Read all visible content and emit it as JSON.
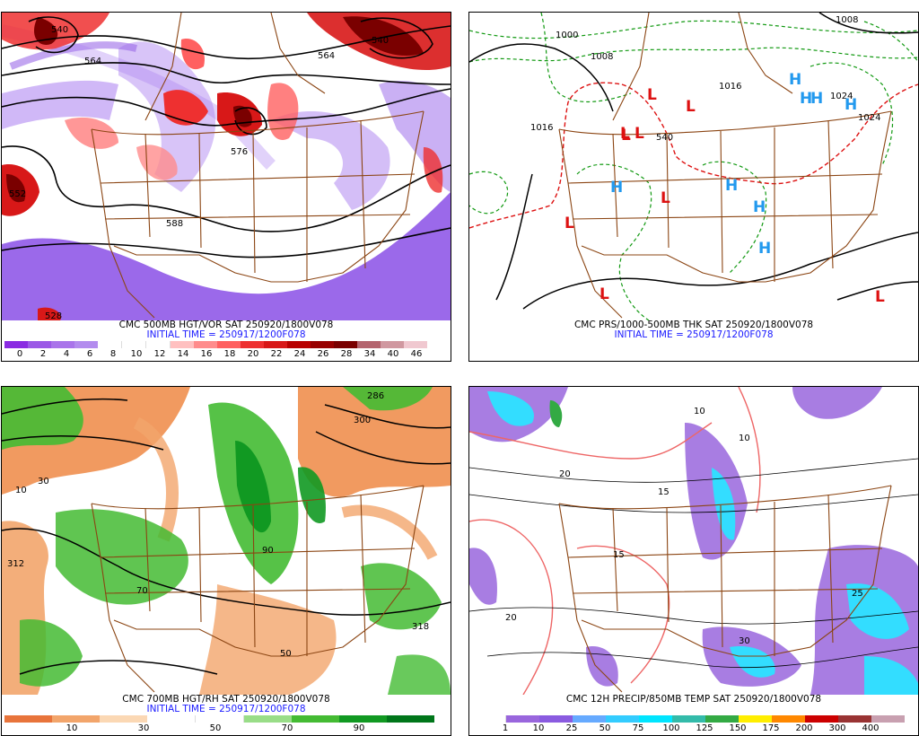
{
  "panels": {
    "top_left": {
      "caption": "CMC 500MB HGT/VOR SAT 250920/1800V078",
      "init": "INITIAL TIME = 250917/1200F078",
      "ticks": [
        "0",
        "2",
        "4",
        "6",
        "8",
        "10",
        "12",
        "14",
        "16",
        "18",
        "20",
        "22",
        "24",
        "26",
        "28",
        "34",
        "40",
        "46"
      ],
      "colors": [
        "#8a2be2",
        "#9b59e6",
        "#a974ea",
        "#b38cee",
        "#ffffff",
        "#ffffff",
        "#ffffff",
        "#ffc0c0",
        "#ff8c8c",
        "#ff6060",
        "#ee3030",
        "#d81818",
        "#b80000",
        "#980000",
        "#7a0000",
        "#b4646e",
        "#d098a0",
        "#f0c8d0"
      ],
      "labels": [
        "540",
        "564",
        "576",
        "588",
        "564",
        "540",
        "552",
        "528"
      ]
    },
    "top_right": {
      "caption": "CMC PRS/1000-500MB THK SAT 250920/1800V078",
      "init": "INITIAL TIME = 250917/1200F078",
      "labels": [
        "1000",
        "1008",
        "1016",
        "1016",
        "1024",
        "1024",
        "1008",
        "540"
      ],
      "lows": [
        "L",
        "L",
        "L",
        "L",
        "L",
        "L",
        "L",
        "L",
        "L"
      ],
      "highs": [
        "H",
        "H",
        "H",
        "H",
        "H",
        "H",
        "H",
        "H"
      ]
    },
    "bottom_left": {
      "caption": "CMC 700MB HGT/RH SAT 250920/1800V078",
      "init": "INITIAL TIME = 250917/1200F078",
      "ticks": [
        "10",
        "30",
        "50",
        "70",
        "90"
      ],
      "colors": [
        "#e8743b",
        "#f2a56b",
        "#fbd8b4",
        "#ffffff",
        "#ffffff",
        "#99dd88",
        "#44bb33",
        "#119922",
        "#00761a"
      ],
      "labels": [
        "286",
        "300",
        "312",
        "318",
        "90",
        "50",
        "10",
        "30",
        "70"
      ]
    },
    "bottom_right": {
      "caption": "CMC 12H PRECIP/850MB TEMP SAT 250920/1800V078",
      "init": "",
      "ticks": [
        "1",
        "10",
        "25",
        "50",
        "75",
        "100",
        "125",
        "150",
        "175",
        "200",
        "300",
        "400"
      ],
      "colors": [
        "#ffffff",
        "#9966dd",
        "#8a5be0",
        "#66aaff",
        "#33ccff",
        "#00e5ff",
        "#33bbaa",
        "#33aa44",
        "#ffee00",
        "#ff8800",
        "#cc0000",
        "#993333",
        "#c8a0b0"
      ],
      "labels": [
        "20",
        "15",
        "10",
        "25",
        "20",
        "15",
        "10",
        "30"
      ]
    }
  },
  "palette": {
    "border": "#8b4513",
    "vort_purple": "#8a4fe6",
    "vort_red": "#d81818",
    "low_red": "#dd1111",
    "high_blue": "#2299ee",
    "thick_green": "#119911",
    "thick_red": "#dd1111",
    "precip_purple": "#9966dd",
    "precip_cyan": "#33ddff",
    "temp_red": "#ee6666",
    "rh_green": "#33bb33",
    "rh_orange": "#ee8844"
  }
}
